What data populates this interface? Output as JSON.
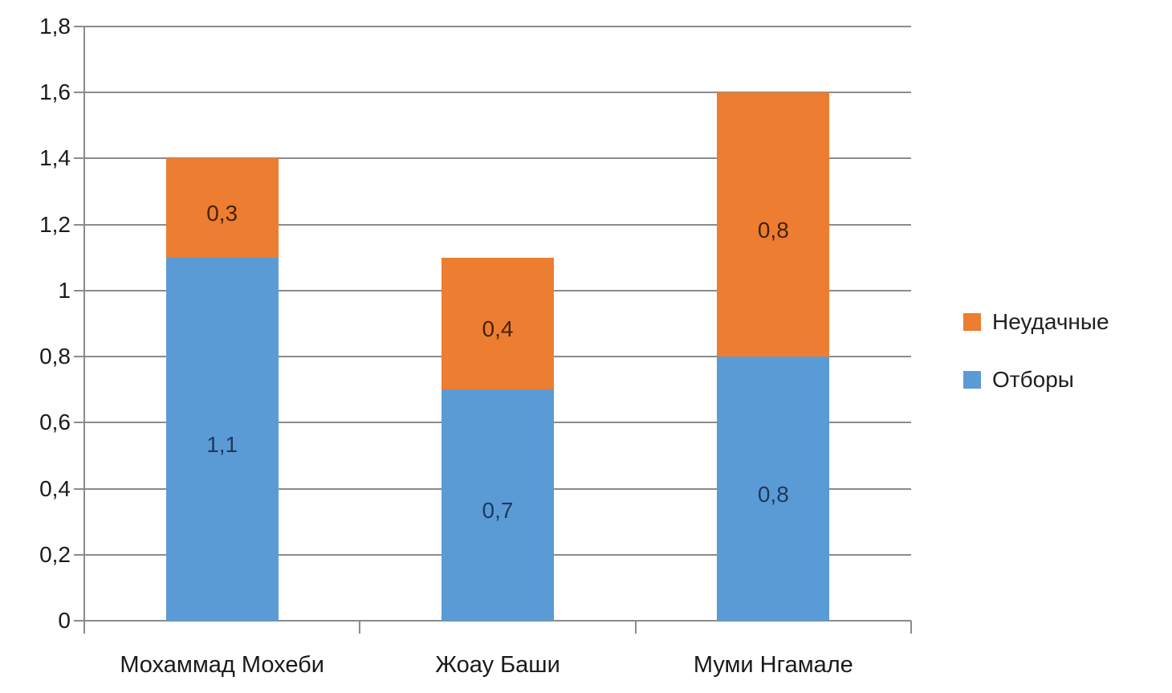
{
  "chart_data": {
    "type": "bar",
    "stacked": true,
    "title": "",
    "xlabel": "",
    "ylabel": "",
    "categories": [
      "Мохаммад Мохеби",
      "Жоау Баши",
      "Муми Нгамале"
    ],
    "series": [
      {
        "name": "Отборы",
        "values": [
          1.1,
          0.7,
          0.8
        ],
        "value_labels": [
          "1,1",
          "0,7",
          "0,8"
        ],
        "color": "#5B9BD5",
        "label_color": "#1c3a5e"
      },
      {
        "name": "Неудачные",
        "values": [
          0.3,
          0.4,
          0.8
        ],
        "value_labels": [
          "0,3",
          "0,4",
          "0,8"
        ],
        "color": "#ED7D31",
        "label_color": "#472205"
      }
    ],
    "y_axis": {
      "min": 0,
      "max": 1.8,
      "step": 0.2,
      "tick_labels": [
        "0",
        "0,2",
        "0,4",
        "0,6",
        "0,8",
        "1",
        "1,2",
        "1,4",
        "1,6",
        "1,8"
      ]
    },
    "grid": true,
    "legend": {
      "position": "right",
      "entries": [
        {
          "label": "Неудачные",
          "color": "#ED7D31"
        },
        {
          "label": "Отборы",
          "color": "#5B9BD5"
        }
      ]
    }
  }
}
